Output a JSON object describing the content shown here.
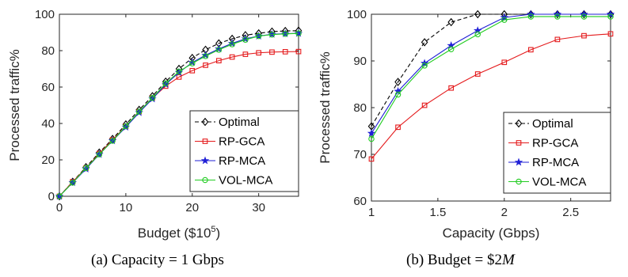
{
  "chart_data": [
    {
      "type": "line",
      "xlabel": "Budget ($10",
      "xlabel_sup": "5",
      "xlabel_close": ")",
      "ylabel": "Processed traffic%",
      "xlim": [
        0,
        36
      ],
      "ylim": [
        0,
        100
      ],
      "xticks": [
        0,
        10,
        20,
        30
      ],
      "yticks": [
        0,
        20,
        40,
        60,
        80,
        100
      ],
      "grid": false,
      "legend_position": "bottom-right",
      "x": [
        0,
        2,
        4,
        6,
        8,
        10,
        12,
        14,
        16,
        18,
        20,
        22,
        24,
        26,
        28,
        30,
        32,
        34,
        36
      ],
      "series": [
        {
          "name": "Optimal",
          "color": "#000000",
          "style": "dashed",
          "marker": "diamond",
          "values": [
            0,
            8,
            16,
            24,
            31.5,
            39.5,
            47.5,
            55,
            63,
            70,
            76,
            80.5,
            84,
            86.5,
            88.5,
            89.5,
            90.5,
            90.8,
            91
          ]
        },
        {
          "name": "RP-GCA",
          "color": "#e41a1c",
          "style": "solid",
          "marker": "square",
          "values": [
            0,
            8,
            15.5,
            23.5,
            31,
            38.5,
            46.5,
            54,
            60.5,
            65.5,
            69,
            72,
            74.5,
            76.5,
            78,
            78.8,
            79.2,
            79.4,
            79.5
          ]
        },
        {
          "name": "RP-MCA",
          "color": "#1f1fd6",
          "style": "solid",
          "marker": "star",
          "values": [
            0,
            7.5,
            15,
            23,
            30.5,
            38,
            46,
            53.5,
            61.5,
            68,
            73.5,
            77.5,
            81,
            84,
            86.5,
            88,
            89,
            89.3,
            89.5
          ]
        },
        {
          "name": "VOL-MCA",
          "color": "#22cc22",
          "style": "solid",
          "marker": "circle",
          "values": [
            0,
            7.5,
            15.5,
            23,
            30.5,
            38.5,
            46.5,
            54,
            62,
            68.5,
            73,
            77,
            80.5,
            83.5,
            86,
            88,
            88.8,
            89.2,
            89.5
          ]
        }
      ]
    },
    {
      "type": "line",
      "xlabel": "Capacity (Gbps)",
      "ylabel": "Processed traffic%",
      "xlim": [
        1,
        2.8
      ],
      "ylim": [
        60,
        100
      ],
      "xticks": [
        1,
        1.5,
        2,
        2.5
      ],
      "yticks": [
        60,
        70,
        80,
        90,
        100
      ],
      "grid": false,
      "legend_position": "bottom-right",
      "x": [
        1,
        1.2,
        1.4,
        1.6,
        1.8,
        2.0,
        2.2,
        2.4,
        2.6,
        2.8
      ],
      "series": [
        {
          "name": "Optimal",
          "color": "#000000",
          "style": "dashed",
          "marker": "diamond",
          "values": [
            76,
            85.5,
            94,
            98.3,
            100,
            100,
            100,
            100,
            100,
            100
          ]
        },
        {
          "name": "RP-GCA",
          "color": "#e41a1c",
          "style": "solid",
          "marker": "square",
          "values": [
            69,
            75.8,
            80.5,
            84.2,
            87.2,
            89.7,
            92.4,
            94.6,
            95.4,
            95.8
          ]
        },
        {
          "name": "RP-MCA",
          "color": "#1f1fd6",
          "style": "solid",
          "marker": "star",
          "values": [
            74.5,
            83.5,
            89.5,
            93.3,
            96.5,
            99.3,
            100,
            100,
            100,
            100
          ]
        },
        {
          "name": "VOL-MCA",
          "color": "#22cc22",
          "style": "solid",
          "marker": "circle",
          "values": [
            73.3,
            82.8,
            89,
            92.5,
            95.7,
            98.8,
            99.5,
            99.5,
            99.5,
            99.5
          ]
        }
      ]
    }
  ],
  "captions": [
    {
      "label": "(a) Capacity = 1 Gbps"
    },
    {
      "label_prefix": "(b) Budget = $2",
      "label_italic": "M"
    }
  ]
}
